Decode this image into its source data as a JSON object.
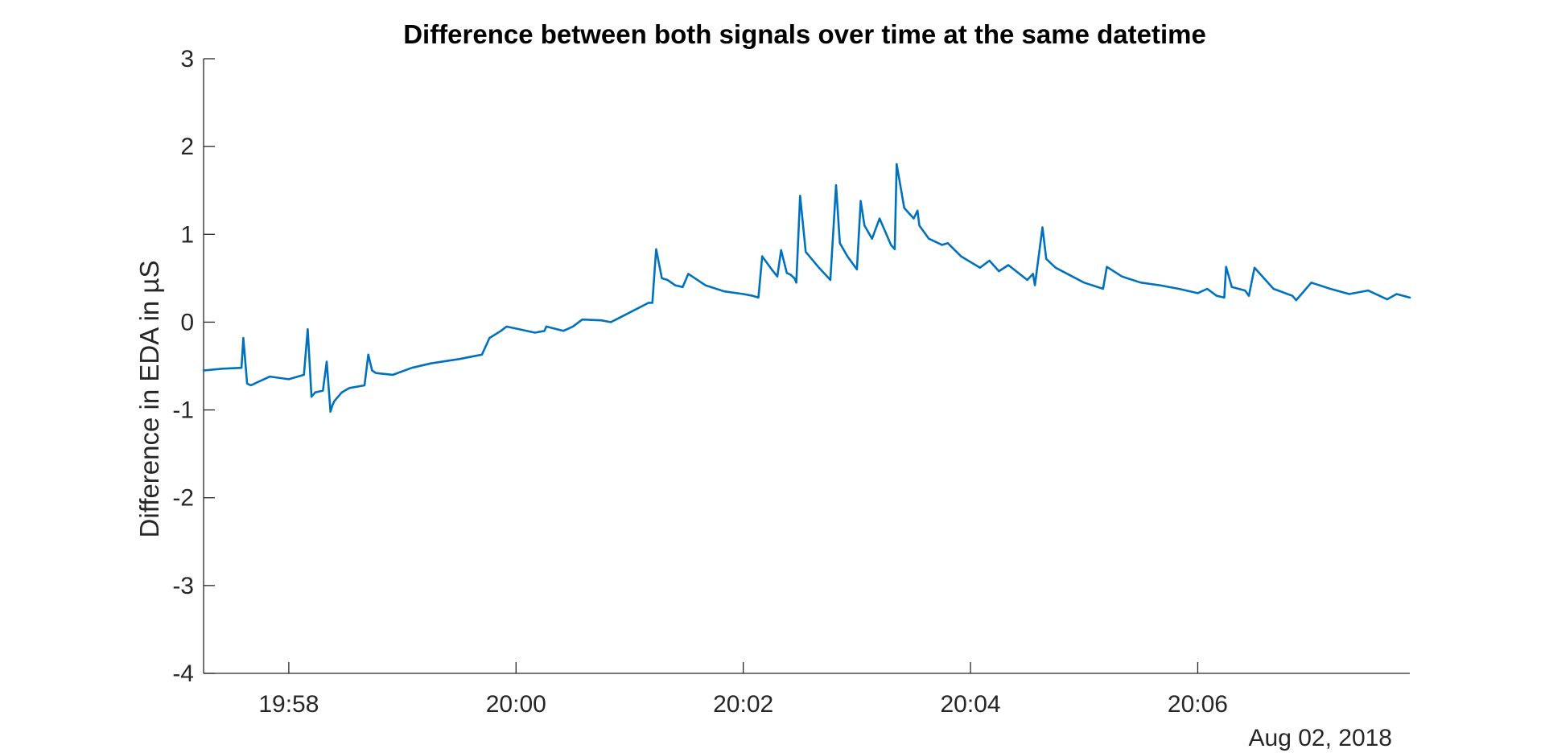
{
  "chart_data": {
    "type": "line",
    "title": "Difference between both signals over time at the same datetime",
    "xlabel": "",
    "ylabel": "Difference in EDA in µS",
    "x_date_label": "Aug 02, 2018",
    "xlim": [
      "19:57:15",
      "20:07:52"
    ],
    "ylim": [
      -4,
      3
    ],
    "x_ticks": [
      "19:58",
      "20:00",
      "20:02",
      "20:04",
      "20:06"
    ],
    "y_ticks": [
      -4,
      -3,
      -2,
      -1,
      0,
      1,
      2,
      3
    ],
    "grid": false,
    "series": [
      {
        "color": "#0072BD",
        "x": [
          "19:57:15",
          "19:57:25",
          "19:57:35",
          "19:57:36",
          "19:57:38",
          "19:57:40",
          "19:57:42",
          "19:57:44",
          "19:57:50",
          "19:58:00",
          "19:58:08",
          "19:58:10",
          "19:58:12",
          "19:58:14",
          "19:58:18",
          "19:58:20",
          "19:58:22",
          "19:58:23",
          "19:58:24",
          "19:58:28",
          "19:58:32",
          "19:58:40",
          "19:58:42",
          "19:58:44",
          "19:58:46",
          "19:58:55",
          "19:59:05",
          "19:59:15",
          "19:59:30",
          "19:59:42",
          "19:59:46",
          "19:59:52",
          "19:59:55",
          "20:00:10",
          "20:00:15",
          "20:00:16",
          "20:00:25",
          "20:00:30",
          "20:00:35",
          "20:00:45",
          "20:00:50",
          "20:00:52",
          "20:01:10",
          "20:01:12",
          "20:01:14",
          "20:01:17",
          "20:01:20",
          "20:01:24",
          "20:01:28",
          "20:01:31",
          "20:01:40",
          "20:01:50",
          "20:02:00",
          "20:02:05",
          "20:02:08",
          "20:02:10",
          "20:02:15",
          "20:02:18",
          "20:02:20",
          "20:02:23",
          "20:02:25",
          "20:02:27",
          "20:02:28",
          "20:02:30",
          "20:02:33",
          "20:02:40",
          "20:02:46",
          "20:02:49",
          "20:02:51",
          "20:02:55",
          "20:03:00",
          "20:03:02",
          "20:03:04",
          "20:03:08",
          "20:03:12",
          "20:03:18",
          "20:03:20",
          "20:03:21",
          "20:03:25",
          "20:03:30",
          "20:03:32",
          "20:03:33",
          "20:03:38",
          "20:03:45",
          "20:03:48",
          "20:03:55",
          "20:04:05",
          "20:04:10",
          "20:04:15",
          "20:04:20",
          "20:04:30",
          "20:04:33",
          "20:04:34",
          "20:04:38",
          "20:04:40",
          "20:04:45",
          "20:05:00",
          "20:05:10",
          "20:05:12",
          "20:05:20",
          "20:05:30",
          "20:05:40",
          "20:05:50",
          "20:06:00",
          "20:06:05",
          "20:06:10",
          "20:06:14",
          "20:06:15",
          "20:06:18",
          "20:06:25",
          "20:06:27",
          "20:06:30",
          "20:06:40",
          "20:06:50",
          "20:06:52",
          "20:07:00",
          "20:07:10",
          "20:07:20",
          "20:07:30",
          "20:07:40",
          "20:07:45",
          "20:07:52"
        ],
        "y": [
          -0.55,
          -0.53,
          -0.52,
          -0.18,
          -0.7,
          -0.72,
          -0.7,
          -0.68,
          -0.62,
          -0.65,
          -0.6,
          -0.08,
          -0.85,
          -0.8,
          -0.78,
          -0.45,
          -1.02,
          -0.95,
          -0.9,
          -0.8,
          -0.75,
          -0.72,
          -0.37,
          -0.55,
          -0.58,
          -0.6,
          -0.52,
          -0.47,
          -0.42,
          -0.37,
          -0.18,
          -0.1,
          -0.05,
          -0.12,
          -0.1,
          -0.05,
          -0.1,
          -0.05,
          0.03,
          0.02,
          0.0,
          0.02,
          0.22,
          0.22,
          0.83,
          0.5,
          0.48,
          0.42,
          0.4,
          0.55,
          0.42,
          0.35,
          0.32,
          0.3,
          0.28,
          0.75,
          0.6,
          0.52,
          0.82,
          0.56,
          0.54,
          0.5,
          0.45,
          1.44,
          0.8,
          0.62,
          0.48,
          1.56,
          0.9,
          0.75,
          0.6,
          1.38,
          1.1,
          0.95,
          1.18,
          0.88,
          0.83,
          1.8,
          1.3,
          1.18,
          1.27,
          1.1,
          0.95,
          0.88,
          0.9,
          0.75,
          0.62,
          0.7,
          0.58,
          0.65,
          0.48,
          0.55,
          0.42,
          1.08,
          0.72,
          0.62,
          0.45,
          0.38,
          0.63,
          0.52,
          0.45,
          0.42,
          0.38,
          0.33,
          0.38,
          0.3,
          0.28,
          0.63,
          0.4,
          0.36,
          0.3,
          0.62,
          0.38,
          0.3,
          0.25,
          0.45,
          0.38,
          0.32,
          0.36,
          0.26,
          0.32,
          0.28
        ]
      }
    ]
  }
}
